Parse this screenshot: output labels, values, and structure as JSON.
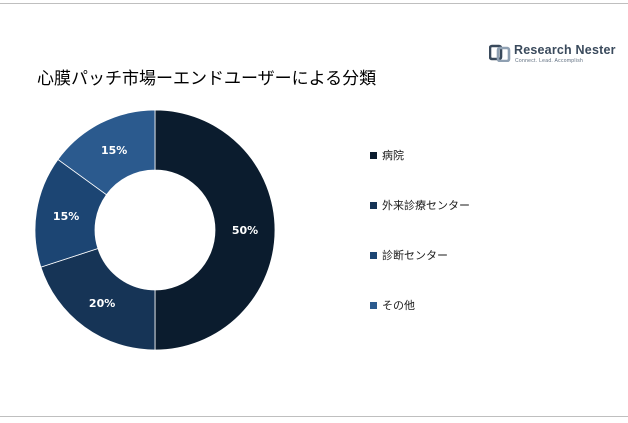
{
  "header": {
    "title": "心膜パッチ市場ーエンドユーザーによる分類"
  },
  "logo": {
    "name": "Research Nester",
    "tagline": "Connect. Lead. Accomplish"
  },
  "colors": {
    "hospital": "#0b1c2e",
    "outpatient": "#163456",
    "diagnostic": "#1c4573",
    "other": "#2b5a8e"
  },
  "chart_data": {
    "type": "pie",
    "donut": true,
    "categories": [
      "病院",
      "外来診療センター",
      "診断センター",
      "その他"
    ],
    "values": [
      50,
      20,
      15,
      15
    ],
    "value_labels": [
      "50%",
      "20%",
      "15%",
      "15%"
    ],
    "title": "心膜パッチ市場ーエンドユーザーによる分類",
    "legend": "right"
  }
}
